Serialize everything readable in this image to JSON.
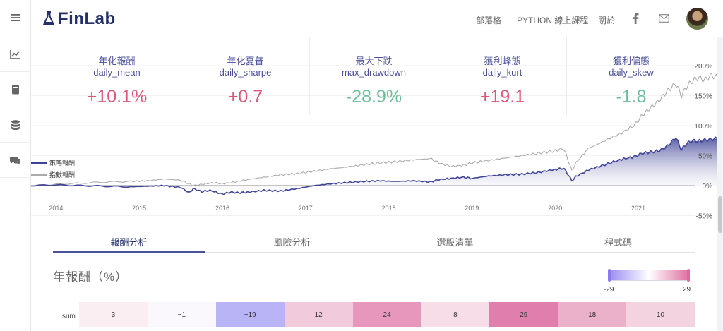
{
  "header": {
    "logo_text": "FinLab",
    "nav": {
      "blog": "部落格",
      "python_course": "PYTHON 線上課程",
      "about": "關於"
    },
    "icons": [
      "facebook-icon",
      "mail-icon"
    ]
  },
  "rail": {
    "items": [
      "menu-icon",
      "chart-icon",
      "book-icon",
      "database-icon",
      "chat-icon"
    ]
  },
  "stats": [
    {
      "cn": "年化報酬",
      "en": "daily_mean",
      "value": "+10.1%",
      "sign": "pos"
    },
    {
      "cn": "年化夏普",
      "en": "daily_sharpe",
      "value": "+0.7",
      "sign": "pos"
    },
    {
      "cn": "最大下跌",
      "en": "max_drawdown",
      "value": "-28.9%",
      "sign": "neg"
    },
    {
      "cn": "獲利峰態",
      "en": "daily_kurt",
      "value": "+19.1",
      "sign": "pos"
    },
    {
      "cn": "獲利偏態",
      "en": "daily_skew",
      "value": "-1.8",
      "sign": "neg"
    }
  ],
  "legend": {
    "strategy": "策略報酬",
    "index": "指數報酬"
  },
  "chart_data": {
    "type": "area",
    "x_ticks": [
      "2014",
      "2015",
      "2016",
      "2017",
      "2018",
      "2019",
      "2020",
      "2021"
    ],
    "y_ticks": [
      "200%",
      "150%",
      "100%",
      "50%",
      "0%",
      "-50%"
    ],
    "y_tick_values": [
      200,
      150,
      100,
      50,
      0,
      -50
    ],
    "ylim": [
      -60,
      205
    ],
    "xlim": [
      2013.7,
      2021.95
    ],
    "series": [
      {
        "name": "策略報酬",
        "color": "#3e4396",
        "points": [
          [
            2013.7,
            0
          ],
          [
            2014.0,
            1
          ],
          [
            2014.3,
            0
          ],
          [
            2014.6,
            -1
          ],
          [
            2014.9,
            -2
          ],
          [
            2015.1,
            -1
          ],
          [
            2015.3,
            0
          ],
          [
            2015.5,
            -3
          ],
          [
            2015.6,
            -12
          ],
          [
            2015.65,
            -5
          ],
          [
            2015.75,
            -10
          ],
          [
            2015.85,
            -8
          ],
          [
            2016.0,
            -14
          ],
          [
            2016.1,
            -11
          ],
          [
            2016.2,
            -12
          ],
          [
            2016.3,
            -11
          ],
          [
            2016.5,
            -8
          ],
          [
            2016.7,
            -9
          ],
          [
            2016.9,
            -5
          ],
          [
            2017.1,
            0
          ],
          [
            2017.3,
            3
          ],
          [
            2017.5,
            5
          ],
          [
            2017.7,
            7
          ],
          [
            2017.9,
            8
          ],
          [
            2018.1,
            7
          ],
          [
            2018.3,
            8
          ],
          [
            2018.5,
            6
          ],
          [
            2018.6,
            10
          ],
          [
            2018.75,
            12
          ],
          [
            2018.9,
            14
          ],
          [
            2019.0,
            12
          ],
          [
            2019.2,
            16
          ],
          [
            2019.4,
            18
          ],
          [
            2019.6,
            19
          ],
          [
            2019.8,
            22
          ],
          [
            2020.0,
            27
          ],
          [
            2020.1,
            29
          ],
          [
            2020.15,
            20
          ],
          [
            2020.2,
            8
          ],
          [
            2020.25,
            15
          ],
          [
            2020.4,
            26
          ],
          [
            2020.6,
            35
          ],
          [
            2020.8,
            44
          ],
          [
            2020.95,
            48
          ],
          [
            2021.05,
            54
          ],
          [
            2021.15,
            56
          ],
          [
            2021.25,
            58
          ],
          [
            2021.35,
            66
          ],
          [
            2021.45,
            80
          ],
          [
            2021.52,
            60
          ],
          [
            2021.58,
            70
          ],
          [
            2021.65,
            75
          ],
          [
            2021.72,
            74
          ],
          [
            2021.8,
            76
          ],
          [
            2021.88,
            77
          ],
          [
            2021.95,
            79
          ]
        ]
      },
      {
        "name": "指數報酬",
        "color": "#aaaaaa",
        "points": [
          [
            2013.7,
            0
          ],
          [
            2014.0,
            2
          ],
          [
            2014.3,
            4
          ],
          [
            2014.6,
            6
          ],
          [
            2014.9,
            7
          ],
          [
            2015.1,
            8
          ],
          [
            2015.3,
            11
          ],
          [
            2015.5,
            9
          ],
          [
            2015.6,
            3
          ],
          [
            2015.65,
            0
          ],
          [
            2015.75,
            2
          ],
          [
            2015.9,
            5
          ],
          [
            2016.0,
            3
          ],
          [
            2016.15,
            6
          ],
          [
            2016.3,
            10
          ],
          [
            2016.5,
            14
          ],
          [
            2016.7,
            18
          ],
          [
            2016.9,
            20
          ],
          [
            2017.1,
            24
          ],
          [
            2017.3,
            28
          ],
          [
            2017.5,
            31
          ],
          [
            2017.7,
            35
          ],
          [
            2017.9,
            38
          ],
          [
            2018.1,
            40
          ],
          [
            2018.3,
            43
          ],
          [
            2018.5,
            45
          ],
          [
            2018.6,
            38
          ],
          [
            2018.75,
            32
          ],
          [
            2018.9,
            34
          ],
          [
            2019.0,
            38
          ],
          [
            2019.2,
            42
          ],
          [
            2019.4,
            46
          ],
          [
            2019.6,
            50
          ],
          [
            2019.8,
            54
          ],
          [
            2020.0,
            58
          ],
          [
            2020.1,
            62
          ],
          [
            2020.15,
            45
          ],
          [
            2020.2,
            25
          ],
          [
            2020.25,
            38
          ],
          [
            2020.4,
            62
          ],
          [
            2020.6,
            75
          ],
          [
            2020.8,
            88
          ],
          [
            2020.95,
            100
          ],
          [
            2021.05,
            118
          ],
          [
            2021.15,
            130
          ],
          [
            2021.25,
            142
          ],
          [
            2021.35,
            158
          ],
          [
            2021.45,
            170
          ],
          [
            2021.52,
            150
          ],
          [
            2021.58,
            165
          ],
          [
            2021.65,
            175
          ],
          [
            2021.72,
            180
          ],
          [
            2021.8,
            176
          ],
          [
            2021.88,
            184
          ],
          [
            2021.95,
            180
          ]
        ]
      }
    ]
  },
  "tabs": [
    {
      "label": "報酬分析",
      "active": true
    },
    {
      "label": "風險分析",
      "active": false
    },
    {
      "label": "選股清單",
      "active": false
    },
    {
      "label": "程式碼",
      "active": false
    }
  ],
  "annual": {
    "title": "年報酬（%）",
    "scale_min": "-29",
    "scale_max": "29",
    "row_label": "sum",
    "cells": [
      {
        "value": "3",
        "color": "#fbeef3"
      },
      {
        "value": "−1",
        "color": "#faf8fc"
      },
      {
        "value": "−19",
        "color": "#b8b4f6"
      },
      {
        "value": "12",
        "color": "#f1cadb"
      },
      {
        "value": "24",
        "color": "#e697bb"
      },
      {
        "value": "8",
        "color": "#f6dde8"
      },
      {
        "value": "29",
        "color": "#e07fad"
      },
      {
        "value": "18",
        "color": "#ebb0ca"
      },
      {
        "value": "10",
        "color": "#f4d3e1"
      }
    ]
  }
}
